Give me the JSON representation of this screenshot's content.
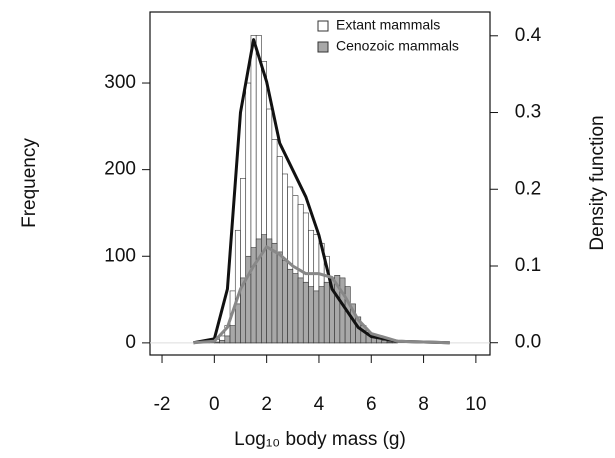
{
  "chart_data": {
    "type": "histogram",
    "xlabel": "Log₁₀ body mass (g)",
    "ylabel": "Frequency",
    "y2label": "Density function",
    "bins": [
      -0.6,
      -0.4,
      -0.2,
      0,
      0.2,
      0.4,
      0.6,
      0.8,
      1.0,
      1.2,
      1.4,
      1.6,
      1.8,
      2.0,
      2.2,
      2.4,
      2.6,
      2.8,
      3.0,
      3.2,
      3.4,
      3.6,
      3.8,
      4.0,
      4.2,
      4.4,
      4.6,
      4.8,
      5.0,
      5.2,
      5.4,
      5.6,
      5.8,
      6.0,
      6.2,
      6.4,
      6.6,
      6.8,
      7.0
    ],
    "series": [
      {
        "name": "Extant mammals",
        "color": "#ffffff",
        "values": [
          0,
          1,
          2,
          4,
          8,
          20,
          60,
          130,
          190,
          300,
          355,
          355,
          325,
          270,
          235,
          215,
          195,
          180,
          170,
          160,
          150,
          130,
          125,
          115,
          100,
          75,
          60,
          50,
          45,
          35,
          25,
          15,
          10,
          8,
          5,
          3,
          2,
          1
        ]
      },
      {
        "name": "Cenozoic mammals",
        "color": "#a8a8a8",
        "values": [
          0,
          0,
          0,
          1,
          3,
          8,
          20,
          45,
          75,
          100,
          110,
          120,
          125,
          120,
          115,
          105,
          95,
          85,
          80,
          75,
          70,
          65,
          60,
          65,
          70,
          75,
          78,
          75,
          65,
          45,
          30,
          20,
          12,
          8,
          5,
          3,
          1,
          1
        ]
      }
    ],
    "density": [
      {
        "type": "line",
        "axis": "y2",
        "color": "#111111",
        "x": [
          -0.8,
          0,
          0.5,
          1,
          1.5,
          2,
          2.5,
          3,
          3.5,
          4,
          4.5,
          5,
          5.5,
          6,
          7,
          8,
          9
        ],
        "values": [
          0,
          0.005,
          0.07,
          0.3,
          0.395,
          0.34,
          0.26,
          0.225,
          0.19,
          0.14,
          0.07,
          0.045,
          0.02,
          0.008,
          0.002,
          0.001,
          0
        ]
      },
      {
        "type": "line",
        "axis": "y2",
        "color": "#888888",
        "x": [
          -0.8,
          0,
          0.5,
          1,
          1.5,
          2,
          2.5,
          3,
          3.5,
          4,
          4.5,
          5,
          5.5,
          6,
          7,
          8,
          9
        ],
        "values": [
          0,
          0.002,
          0.02,
          0.07,
          0.1,
          0.125,
          0.115,
          0.1,
          0.09,
          0.09,
          0.085,
          0.06,
          0.03,
          0.012,
          0.002,
          0.001,
          0
        ]
      }
    ],
    "xlim": [
      -2.46,
      10.54
    ],
    "ylim": [
      -14,
      382
    ],
    "y2lim": [
      -0.016,
      0.431
    ],
    "xticks": [
      -2,
      0,
      2,
      4,
      6,
      8,
      10
    ],
    "yticks": [
      0,
      100,
      200,
      300
    ],
    "y2ticks": [
      {
        "value": 0,
        "label": "0.0"
      },
      {
        "value": 0.1,
        "label": "0.1"
      },
      {
        "value": 0.2,
        "label": "0.2"
      },
      {
        "value": 0.3,
        "label": "0.3"
      },
      {
        "value": 0.4,
        "label": "0.4"
      }
    ],
    "legend": "top-right"
  }
}
